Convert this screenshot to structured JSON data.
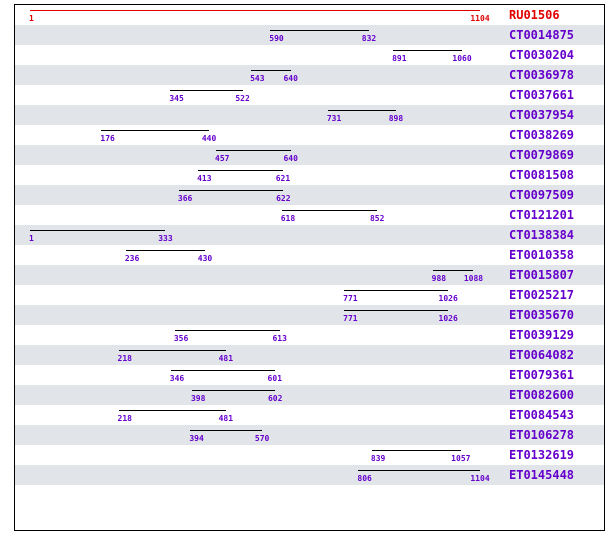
{
  "colors": {
    "reference": "#e00000",
    "match": "#6600cc",
    "segment": "#000000",
    "stripe": "#e1e5ea"
  },
  "axis": {
    "min": 1,
    "max": 1104
  },
  "reference": {
    "id": "RU01506",
    "start": 1,
    "end": 1104
  },
  "hits": [
    {
      "id": "CT0014875",
      "start": 590,
      "end": 832
    },
    {
      "id": "CT0030204",
      "start": 891,
      "end": 1060
    },
    {
      "id": "CT0036978",
      "start": 543,
      "end": 640
    },
    {
      "id": "CT0037661",
      "start": 345,
      "end": 522
    },
    {
      "id": "CT0037954",
      "start": 731,
      "end": 898
    },
    {
      "id": "CT0038269",
      "start": 176,
      "end": 440
    },
    {
      "id": "CT0079869",
      "start": 457,
      "end": 640
    },
    {
      "id": "CT0081508",
      "start": 413,
      "end": 621
    },
    {
      "id": "CT0097509",
      "start": 366,
      "end": 622
    },
    {
      "id": "CT0121201",
      "start": 618,
      "end": 852
    },
    {
      "id": "CT0138384",
      "start": 1,
      "end": 333
    },
    {
      "id": "ET0010358",
      "start": 236,
      "end": 430
    },
    {
      "id": "ET0015807",
      "start": 988,
      "end": 1088
    },
    {
      "id": "ET0025217",
      "start": 771,
      "end": 1026
    },
    {
      "id": "ET0035670",
      "start": 771,
      "end": 1026
    },
    {
      "id": "ET0039129",
      "start": 356,
      "end": 613
    },
    {
      "id": "ET0064082",
      "start": 218,
      "end": 481
    },
    {
      "id": "ET0079361",
      "start": 346,
      "end": 601
    },
    {
      "id": "ET0082600",
      "start": 398,
      "end": 602
    },
    {
      "id": "ET0084543",
      "start": 218,
      "end": 481
    },
    {
      "id": "ET0106278",
      "start": 394,
      "end": 570
    },
    {
      "id": "ET0132619",
      "start": 839,
      "end": 1057
    },
    {
      "id": "ET0145448",
      "start": 806,
      "end": 1104
    }
  ]
}
